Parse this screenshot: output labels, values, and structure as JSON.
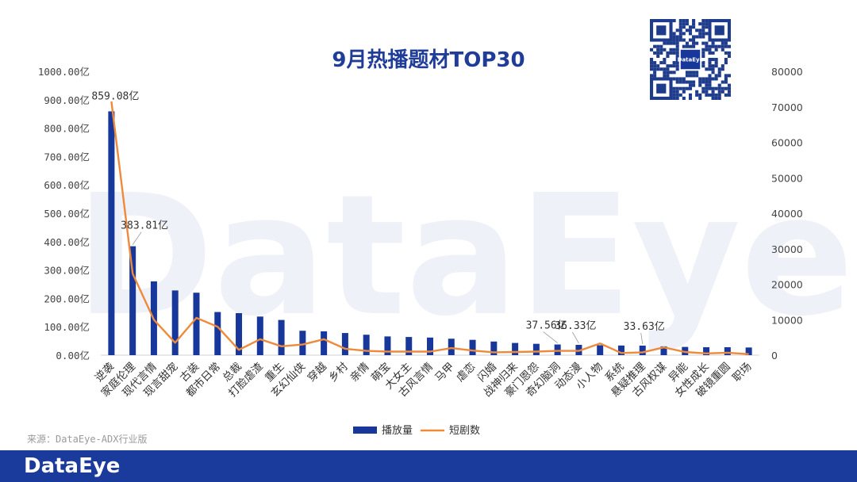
{
  "watermark": "DataEye",
  "source": "来源：DataEye-ADX行业版",
  "footer_brand": "DataEye",
  "qr_brand": "DataEye",
  "colors": {
    "bar": "#17379a",
    "line": "#ee8a3c",
    "title": "#1f3c99",
    "footer": "#1a3a9c"
  },
  "chart_data": {
    "type": "bar",
    "title": "9月热播题材TOP30",
    "categories": [
      "逆袭",
      "家庭伦理",
      "现代言情",
      "现言甜宠",
      "古装",
      "都市日常",
      "总裁",
      "打脸虐渣",
      "重生",
      "玄幻仙侠",
      "穿越",
      "乡村",
      "亲情",
      "萌宝",
      "大女主",
      "古风言情",
      "马甲",
      "虐恋",
      "闪婚",
      "战神归来",
      "豪门恩怨",
      "奇幻脑洞",
      "动态漫",
      "小人物",
      "系统",
      "悬疑推理",
      "古风权谋",
      "异能",
      "女性成长",
      "破镜重圆",
      "职场"
    ],
    "y_ticks": [
      "1000.00亿",
      "900.00亿",
      "800.00亿",
      "700.00亿",
      "600.00亿",
      "500.00亿",
      "400.00亿",
      "300.00亿",
      "200.00亿",
      "100.00亿",
      "0.00亿"
    ],
    "y2_ticks": [
      "80000",
      "70000",
      "60000",
      "50000",
      "40000",
      "30000",
      "20000",
      "10000",
      "0"
    ],
    "ylim": [
      0,
      1000
    ],
    "y2lim": [
      0,
      80000
    ],
    "series": [
      {
        "name": "播放量",
        "type": "bar",
        "axis": "left",
        "values": [
          859.08,
          383.81,
          260,
          228,
          220,
          152,
          148,
          136,
          124,
          86,
          84,
          78,
          72,
          66,
          64,
          62,
          58,
          54,
          48,
          43,
          40,
          37.56,
          36.33,
          35,
          34,
          33.63,
          31,
          29,
          28,
          28,
          27
        ]
      },
      {
        "name": "短剧数",
        "type": "line",
        "axis": "right",
        "values": [
          71500,
          23000,
          10000,
          3500,
          10500,
          8000,
          1500,
          4500,
          2500,
          3000,
          4500,
          1800,
          1200,
          1000,
          1000,
          1000,
          2000,
          1300,
          800,
          900,
          1000,
          1200,
          1200,
          3300,
          600,
          800,
          2200,
          900,
          500,
          700,
          300
        ]
      }
    ],
    "data_labels": [
      {
        "series": 0,
        "index": 0,
        "text": "859.08亿"
      },
      {
        "series": 0,
        "index": 1,
        "text": "383.81亿"
      },
      {
        "series": 0,
        "index": 21,
        "text": "37.56亿"
      },
      {
        "series": 0,
        "index": 22,
        "text": "36.33亿"
      },
      {
        "series": 0,
        "index": 25,
        "text": "33.63亿"
      }
    ],
    "legend": {
      "position": "bottom",
      "items": [
        "播放量",
        "短剧数"
      ]
    },
    "grid": false
  }
}
